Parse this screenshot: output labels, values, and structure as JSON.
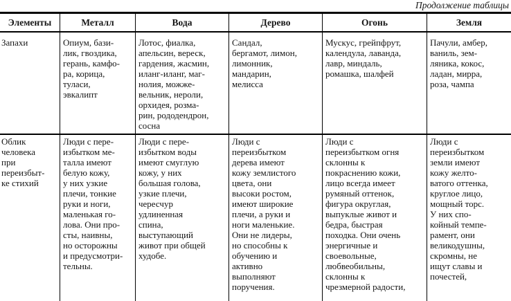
{
  "page": {
    "continuation_label": "Продолжение таблицы"
  },
  "colors": {
    "text": "#161616",
    "border": "#000000",
    "background": "#ffffff"
  },
  "table": {
    "headers": [
      "Элементы",
      "Металл",
      "Вода",
      "Дерево",
      "Огонь",
      "Земля"
    ],
    "rows": [
      {
        "label": "Запахи",
        "cells": [
          "Опиум, бази-\nлик, гвоздика,\nгерань, камфо-\nра, корица,\nтуласи,\nэвкалипт",
          "Лотос, фиалка,\nапельсин, вереск,\nгардения, жасмин,\nиланг-иланг, маг-\nнолия, можже-\nвельник, нероли,\nорхидея, розма-\nрин, рододендрон,\nсосна",
          "Сандал,\nбергамот, лимон,\nлимонник,\nмандарин,\nмелисса",
          "Мускус, грейпфрут,\nкалендула, лаванда,\nлавр, миндаль,\nромашка, шалфей",
          "Пачули, амбер,\nваниль, зем-\nляника, кокос,\nладан, мирра,\nроза, чампа"
        ]
      },
      {
        "label": "Облик\nчеловека\nпри\nпереизбыт-\nке стихий",
        "cells": [
          "Люди с пере-\nизбытком ме-\nталла имеют\nбелую кожу,\nу них узкие\nплечи, тонкие\nруки и ноги,\nмаленькая го-\nлова. Они про-\nсты, наивны,\nно осторожны\nи предусмотри-\nтельны.",
          "Люди с пере-\nизбытком воды\nимеют смуглую\nкожу, у них\nбольшая голова,\nузкие плечи,\nчересчур\nудлиненная\nспина,\nвыступающий\nживот при общей\nхудобе.",
          "Люди с\nпереизбытком\nдерева имеют\nкожу землистого\nцвета, они\nвысоки ростом,\nимеют широкие\nплечи, а руки и\nноги маленькие.\nОни не лидеры,\nно способны к\nобучению и\nактивно\nвыполняют\nпоручения.",
          "Люди с\nпереизбытком огня\nсклонны к\nпокраснению кожи,\nлицо всегда имеет\nрумяный оттенок,\nфигура округлая,\nвыпуклые живот и\nбедра, быстрая\nпоходка. Они очень\nэнергичные и\nсвоевольные,\nлюбвеобильны,\nсклонны к\nчрезмерной радости,",
          "Люди с\nпереизбытком\nземли имеют\nкожу желто-\nватого оттенка,\nкруглое лицо,\nмощный торс.\nУ них спо-\nкойный темпе-\nрамент, они\nвеликодушны,\nскромны, не\nищут славы и\nпочестей,"
        ]
      }
    ]
  }
}
